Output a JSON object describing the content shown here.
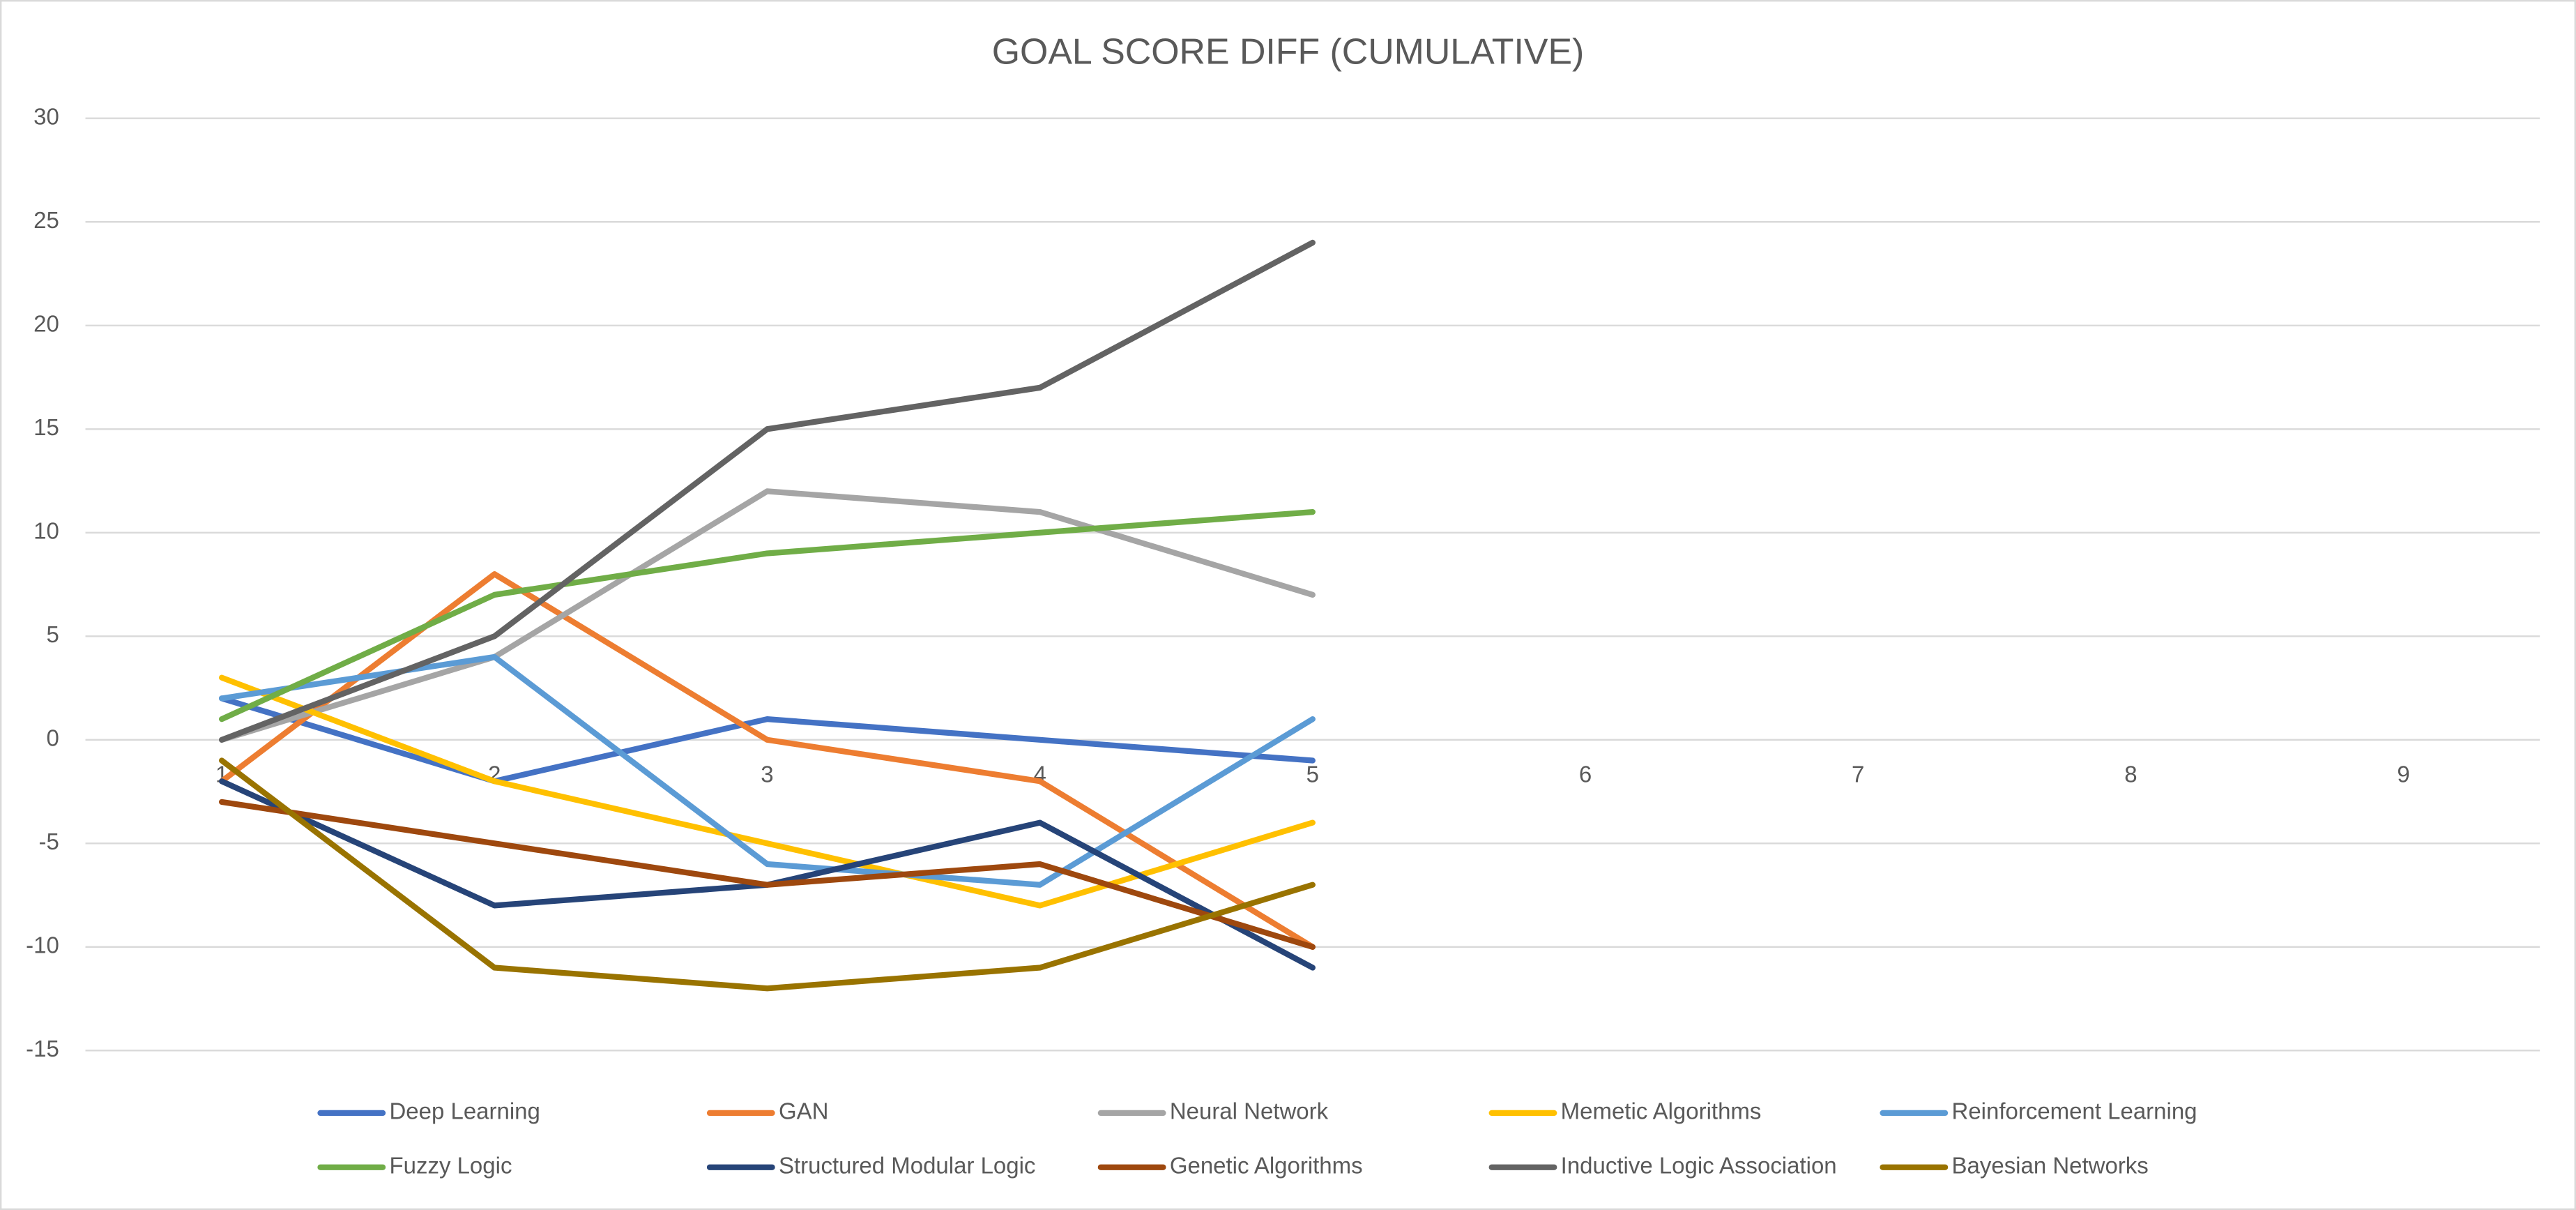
{
  "chart_data": {
    "type": "line",
    "title": "GOAL SCORE DIFF (CUMULATIVE)",
    "categories": [
      "1",
      "2",
      "3",
      "4",
      "5",
      "6",
      "7",
      "8",
      "9"
    ],
    "series": [
      {
        "name": "Deep Learning",
        "color": "#4472c4",
        "values": [
          2,
          -2,
          1,
          0,
          -1,
          null,
          null,
          null,
          null
        ]
      },
      {
        "name": "GAN",
        "color": "#ed7d31",
        "values": [
          -2,
          8,
          0,
          -2,
          -10,
          null,
          null,
          null,
          null
        ]
      },
      {
        "name": "Neural Network",
        "color": "#a5a5a5",
        "values": [
          0,
          4,
          12,
          11,
          7,
          null,
          null,
          null,
          null
        ]
      },
      {
        "name": "Memetic Algorithms",
        "color": "#ffc000",
        "values": [
          3,
          -2,
          -5,
          -8,
          -4,
          null,
          null,
          null,
          null
        ]
      },
      {
        "name": "Reinforcement Learning",
        "color": "#5b9bd5",
        "values": [
          2,
          4,
          -6,
          -7,
          1,
          null,
          null,
          null,
          null
        ]
      },
      {
        "name": "Fuzzy Logic",
        "color": "#70ad47",
        "values": [
          1,
          7,
          9,
          10,
          11,
          null,
          null,
          null,
          null
        ]
      },
      {
        "name": "Structured Modular Logic",
        "color": "#264478",
        "values": [
          -2,
          -8,
          -7,
          -4,
          -11,
          null,
          null,
          null,
          null
        ]
      },
      {
        "name": "Genetic Algorithms",
        "color": "#9e480e",
        "values": [
          -3,
          -5,
          -7,
          -6,
          -10,
          null,
          null,
          null,
          null
        ]
      },
      {
        "name": "Inductive Logic Association",
        "color": "#636363",
        "values": [
          0,
          5,
          15,
          17,
          24,
          null,
          null,
          null,
          null
        ]
      },
      {
        "name": "Bayesian Networks",
        "color": "#997300",
        "values": [
          -1,
          -11,
          -12,
          -11,
          -7,
          null,
          null,
          null,
          null
        ]
      }
    ],
    "ylim": [
      -15,
      30
    ],
    "yticks": [
      -15,
      -10,
      -5,
      0,
      5,
      10,
      15,
      20,
      25,
      30
    ],
    "grid": true,
    "legend": "bottom"
  }
}
